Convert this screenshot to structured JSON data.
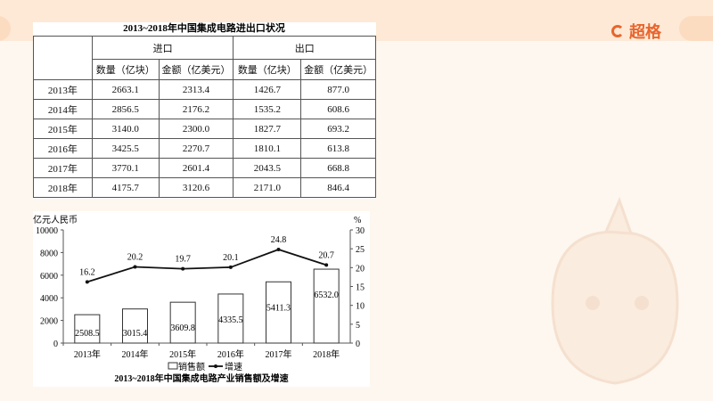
{
  "brand": {
    "name": "超格",
    "color": "#e8652d"
  },
  "table": {
    "title": "2013~2018年中国集成电路进出口状况",
    "groups": [
      "进口",
      "出口"
    ],
    "subheaders": [
      "数量（亿块）",
      "金额（亿美元）",
      "数量（亿块）",
      "金额（亿美元）"
    ],
    "rows": [
      [
        "2013年",
        "2663.1",
        "2313.4",
        "1426.7",
        "877.0"
      ],
      [
        "2014年",
        "2856.5",
        "2176.2",
        "1535.2",
        "608.6"
      ],
      [
        "2015年",
        "3140.0",
        "2300.0",
        "1827.7",
        "693.2"
      ],
      [
        "2016年",
        "3425.5",
        "2270.7",
        "1810.1",
        "613.8"
      ],
      [
        "2017年",
        "3770.1",
        "2601.4",
        "2043.5",
        "668.8"
      ],
      [
        "2018年",
        "4175.7",
        "3120.6",
        "2171.0",
        "846.4"
      ]
    ]
  },
  "chart_data": {
    "type": "bar+line",
    "title": "2013~2018年中国集成电路产业销售额及增速",
    "categories": [
      "2013年",
      "2014年",
      "2015年",
      "2016年",
      "2017年",
      "2018年"
    ],
    "ylabel_left": "亿元人民币",
    "ylabel_right": "%",
    "ylim_left": [
      0,
      10000
    ],
    "yticks_left": [
      "0",
      "2000",
      "4000",
      "6000",
      "8000",
      "10000"
    ],
    "ylim_right": [
      0,
      30
    ],
    "yticks_right": [
      "0",
      "5",
      "10",
      "15",
      "20",
      "25",
      "30"
    ],
    "series": [
      {
        "name": "销售额",
        "type": "bar",
        "values": [
          2508.5,
          3015.4,
          3609.8,
          4335.5,
          5411.3,
          6532.0
        ],
        "labels": [
          "2508.5",
          "3015.4",
          "3609.8",
          "4335.5",
          "5411.3",
          "6532.0"
        ]
      },
      {
        "name": "增速",
        "type": "line",
        "values": [
          16.2,
          20.2,
          19.7,
          20.1,
          24.8,
          20.7
        ],
        "labels": [
          "16.2",
          "20.2",
          "19.7",
          "20.1",
          "24.8",
          "20.7"
        ]
      }
    ],
    "legend": "bottom"
  }
}
